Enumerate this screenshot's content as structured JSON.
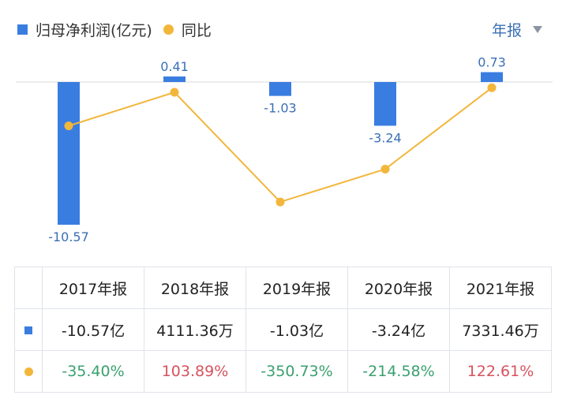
{
  "legend": {
    "bar_label": "归母净利润(亿元)",
    "line_label": "同比"
  },
  "period_selector": {
    "value": "年报"
  },
  "colors": {
    "bar": "#3a7de1",
    "line": "#f2b63a",
    "axis_label_blue": "#3a6fb5",
    "positive": "#d6525f",
    "negative": "#3aa06e",
    "zero_line": "#d8d8d8"
  },
  "chart_data": {
    "type": "bar",
    "categories": [
      "2017年报",
      "2018年报",
      "2019年报",
      "2020年报",
      "2021年报"
    ],
    "series": [
      {
        "name": "归母净利润(亿元)",
        "type": "bar",
        "values": [
          -10.57,
          0.41,
          -1.03,
          -3.24,
          0.73
        ],
        "labels": [
          "-10.57",
          "0.41",
          "-1.03",
          "-3.24",
          "0.73"
        ]
      },
      {
        "name": "同比",
        "type": "line",
        "values": [
          -35.4,
          103.89,
          -350.73,
          -214.58,
          122.61
        ]
      }
    ],
    "grid": false
  },
  "table": {
    "headers": [
      "2017年报",
      "2018年报",
      "2019年报",
      "2020年报",
      "2021年报"
    ],
    "profit_row": [
      "-10.57亿",
      "4111.36万",
      "-1.03亿",
      "-3.24亿",
      "7331.46万"
    ],
    "yoy_row": [
      "-35.40%",
      "103.89%",
      "-350.73%",
      "-214.58%",
      "122.61%"
    ]
  }
}
